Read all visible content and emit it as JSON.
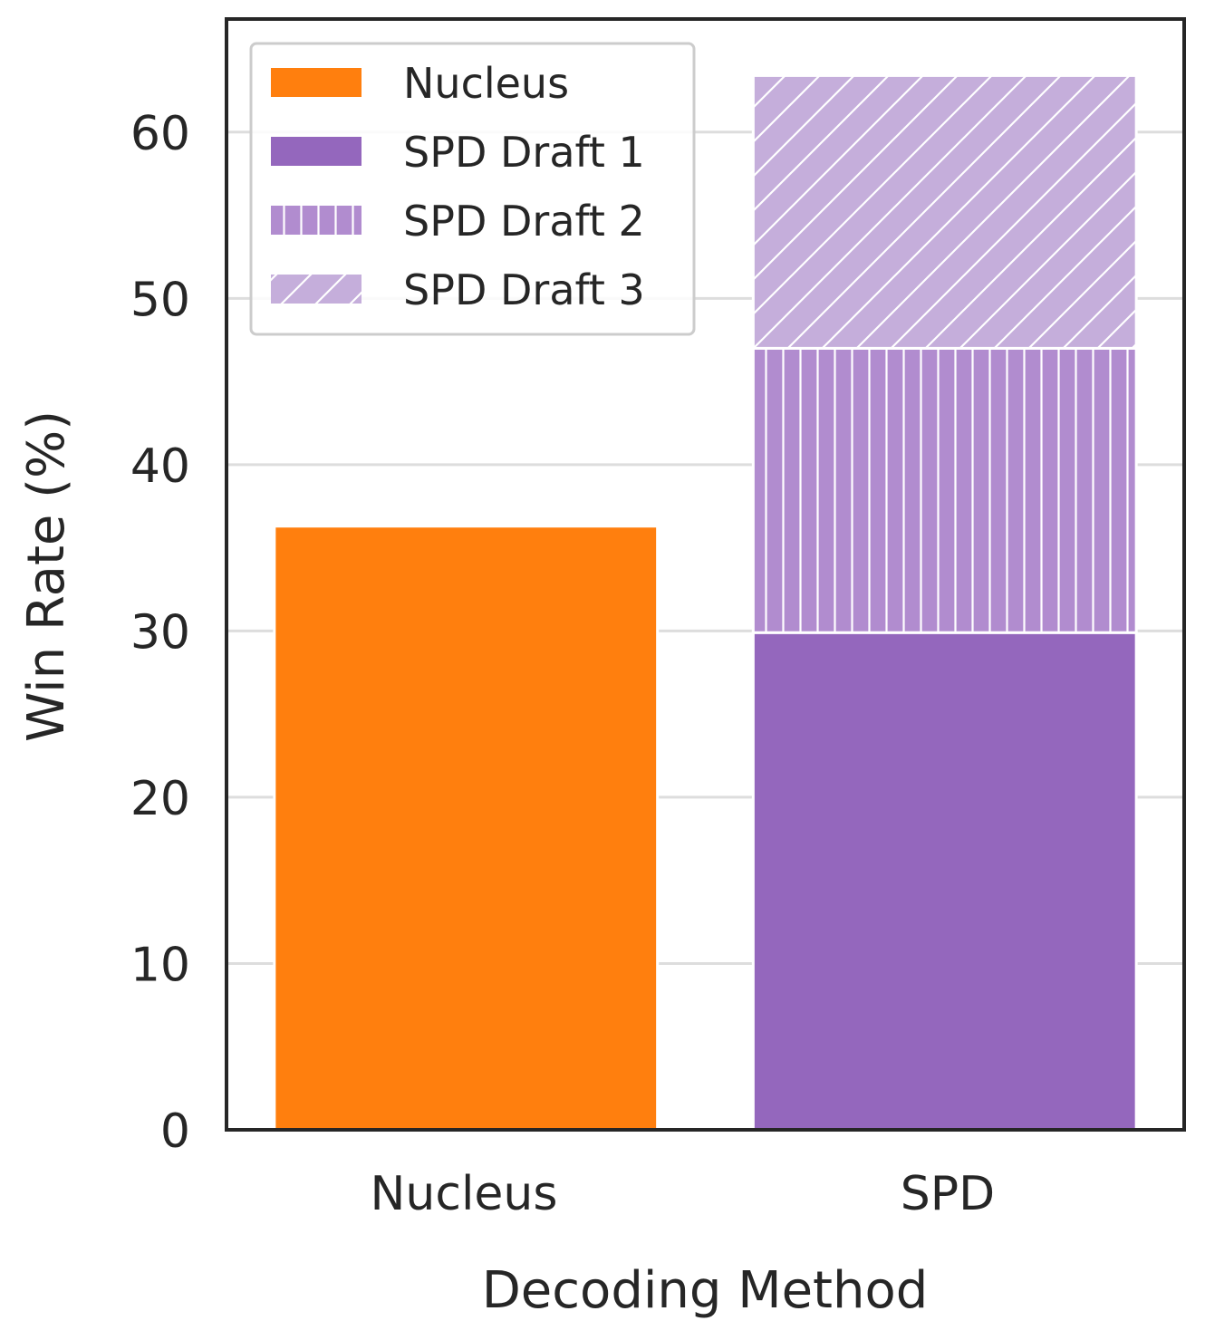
{
  "chart_data": {
    "type": "bar",
    "stacked": true,
    "categories": [
      "Nucleus",
      "SPD"
    ],
    "series": [
      {
        "name": "Nucleus",
        "values": [
          36.3,
          0
        ],
        "color": "#ff7f0e",
        "pattern": "solid"
      },
      {
        "name": "SPD Draft 1",
        "values": [
          0,
          29.9
        ],
        "color": "#9467bd",
        "pattern": "solid"
      },
      {
        "name": "SPD Draft 2",
        "values": [
          0,
          17.1
        ],
        "color": "#b18ccf",
        "pattern": "vertical"
      },
      {
        "name": "SPD Draft 3",
        "values": [
          0,
          16.4
        ],
        "color": "#c5aedb",
        "pattern": "diagonal"
      }
    ],
    "xlabel": "Decoding Method",
    "ylabel": "Win Rate (%)",
    "ylim": [
      0,
      66.8
    ],
    "yticks": [
      "0",
      "10",
      "20",
      "30",
      "40",
      "50",
      "60"
    ],
    "grid": true,
    "legend_position": "top-left"
  }
}
